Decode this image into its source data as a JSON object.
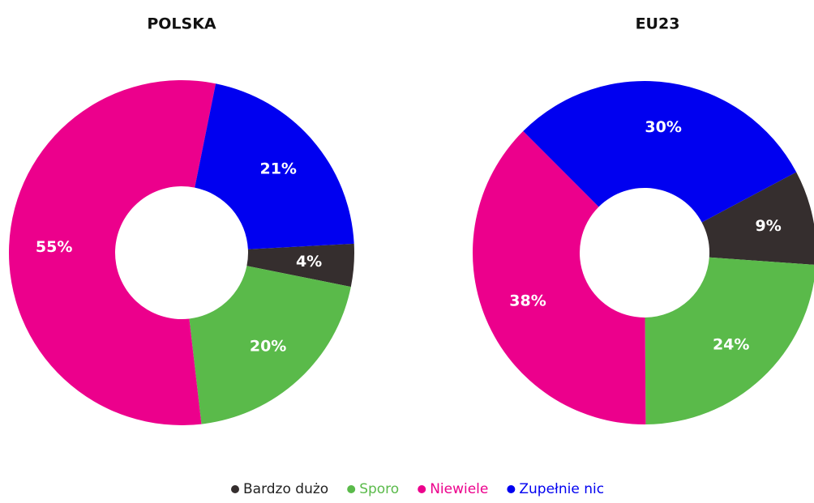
{
  "chart_data": [
    {
      "type": "pie",
      "title": "POLSKA",
      "categories": [
        "Bardzo dużo",
        "Sporo",
        "Niewiele",
        "Zupełnie nic"
      ],
      "colors": [
        "#352e2e",
        "#5aba4a",
        "#ec008c",
        "#0000f0"
      ],
      "values": [
        4,
        20,
        55,
        21
      ],
      "value_labels": [
        "4%",
        "20%",
        "55%",
        "21%"
      ]
    },
    {
      "type": "pie",
      "title": "EU23",
      "categories": [
        "Bardzo dużo",
        "Sporo",
        "Niewiele",
        "Zupełnie nic"
      ],
      "colors": [
        "#352e2e",
        "#5aba4a",
        "#ec008c",
        "#0000f0"
      ],
      "values": [
        9,
        24,
        38,
        30
      ],
      "value_labels": [
        "9%",
        "24%",
        "38%",
        "30%"
      ]
    }
  ]
}
